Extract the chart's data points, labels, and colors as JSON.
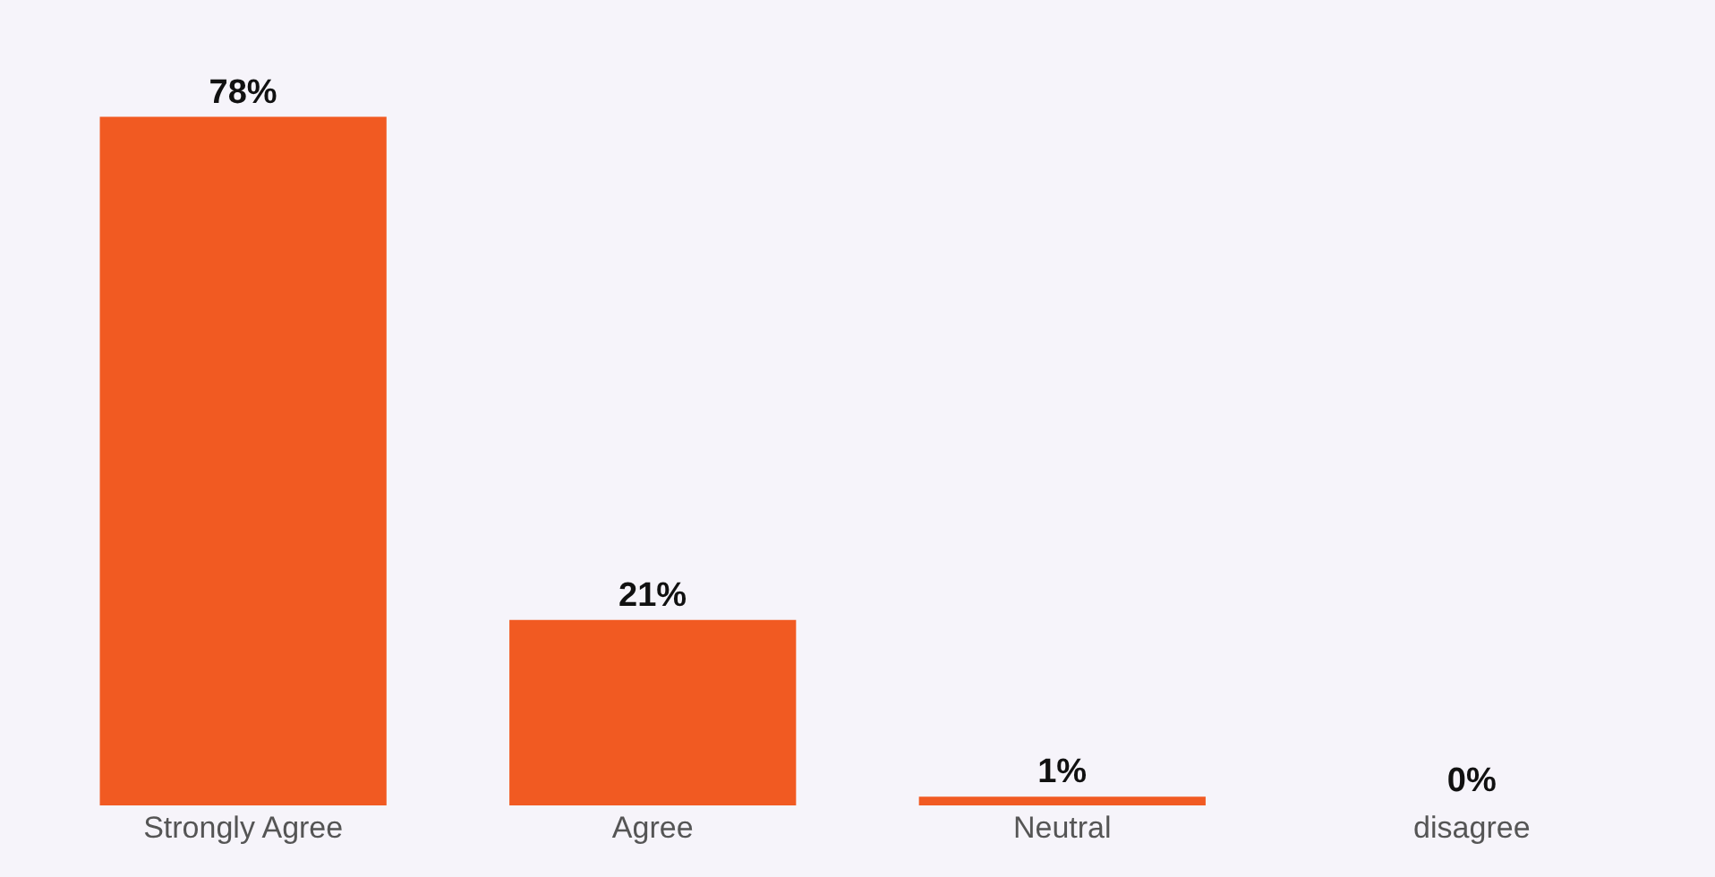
{
  "chart_data": {
    "type": "bar",
    "categories": [
      "Strongly Agree",
      "Agree",
      "Neutral",
      "disagree"
    ],
    "values": [
      78,
      21,
      1,
      0
    ],
    "value_labels": [
      "78%",
      "21%",
      "1%",
      "0%"
    ],
    "color": "#f15a22",
    "grid": false,
    "legend": false
  }
}
